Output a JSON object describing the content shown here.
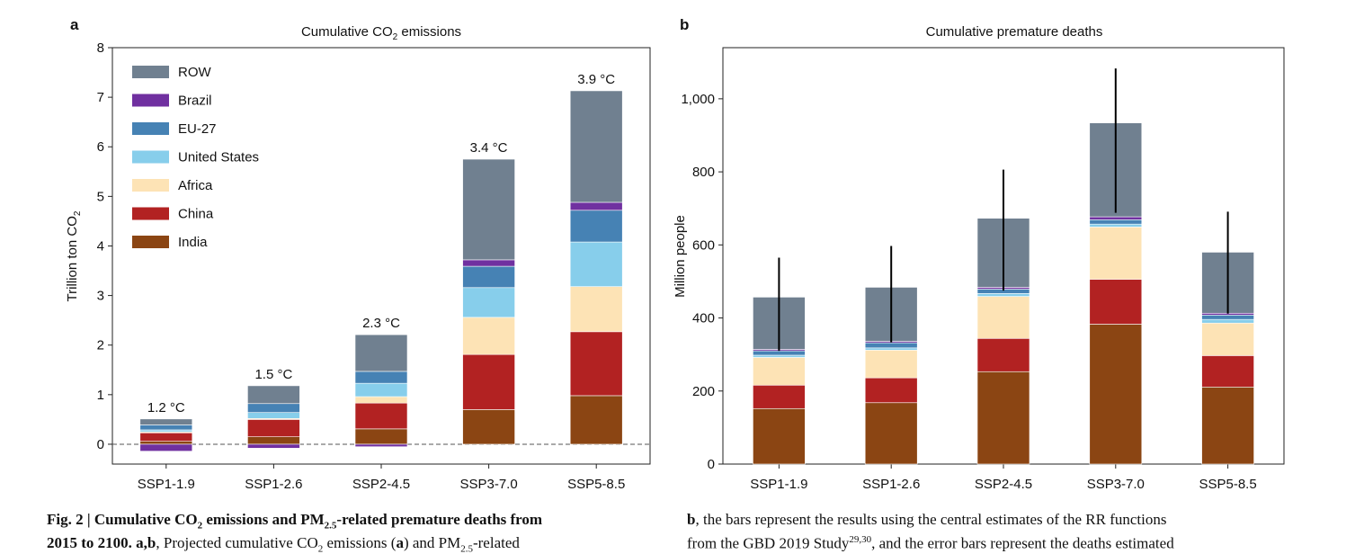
{
  "chart_data": [
    {
      "type": "stacked_bar",
      "panel": "a",
      "title_parts": [
        "Cumulative CO",
        "2",
        " emissions"
      ],
      "ylabel_parts": [
        "Trillion ton CO",
        "2"
      ],
      "categories": [
        "SSP1-1.9",
        "SSP1-2.6",
        "SSP2-4.5",
        "SSP3-7.0",
        "SSP5-8.5"
      ],
      "annotations": [
        "1.2 °C",
        "1.5 °C",
        "2.3 °C",
        "3.4 °C",
        "3.9 °C"
      ],
      "series": [
        {
          "name": "India",
          "color": "#8b4513",
          "values": [
            0.06,
            0.15,
            0.31,
            0.7,
            0.98
          ]
        },
        {
          "name": "China",
          "color": "#b22222",
          "values": [
            0.17,
            0.35,
            0.52,
            1.11,
            1.29
          ]
        },
        {
          "name": "Africa",
          "color": "#fde3b5",
          "values": [
            0.02,
            0.02,
            0.13,
            0.75,
            0.91
          ]
        },
        {
          "name": "United States",
          "color": "#87ceeb",
          "values": [
            0.04,
            0.12,
            0.27,
            0.6,
            0.9
          ]
        },
        {
          "name": "EU-27",
          "color": "#4682b4",
          "values": [
            0.1,
            0.18,
            0.24,
            0.43,
            0.64
          ]
        },
        {
          "name": "Brazil",
          "color": "#7030a0",
          "values": [
            -0.14,
            -0.08,
            -0.05,
            0.13,
            0.16
          ]
        },
        {
          "name": "ROW",
          "color": "#708090",
          "values": [
            0.12,
            0.36,
            0.74,
            2.03,
            2.25
          ]
        }
      ],
      "ylim": [
        -0.4,
        8
      ],
      "yticks": [
        0,
        1,
        2,
        3,
        4,
        5,
        6,
        7,
        8
      ],
      "zero_line": "dashed",
      "legend": "upper left"
    },
    {
      "type": "stacked_bar",
      "panel": "b",
      "title_parts": [
        "Cumulative premature deaths"
      ],
      "ylabel_parts": [
        "Million people"
      ],
      "categories": [
        "SSP1-1.9",
        "SSP1-2.6",
        "SSP2-4.5",
        "SSP3-7.0",
        "SSP5-8.5"
      ],
      "series": [
        {
          "name": "India",
          "color": "#8b4513",
          "values": [
            152,
            168,
            253,
            383,
            211
          ]
        },
        {
          "name": "China",
          "color": "#b22222",
          "values": [
            64,
            68,
            91,
            123,
            86
          ]
        },
        {
          "name": "Africa",
          "color": "#fde3b5",
          "values": [
            76,
            76,
            115,
            143,
            89
          ]
        },
        {
          "name": "United States",
          "color": "#87ceeb",
          "values": [
            6,
            6,
            8,
            8,
            10
          ]
        },
        {
          "name": "EU-27",
          "color": "#4682b4",
          "values": [
            12,
            14,
            12,
            12,
            12
          ]
        },
        {
          "name": "Brazil",
          "color": "#7030a0",
          "values": [
            4,
            4,
            5,
            8,
            5
          ]
        },
        {
          "name": "ROW",
          "color": "#708090",
          "values": [
            143,
            148,
            189,
            257,
            167
          ]
        }
      ],
      "error_low": [
        310,
        333,
        475,
        688,
        412
      ],
      "error_high": [
        565,
        597,
        806,
        1083,
        691
      ],
      "ylim": [
        0,
        1140
      ],
      "yticks": [
        0,
        200,
        400,
        600,
        800,
        {
          "value": 1000,
          "label": "1,000"
        }
      ]
    }
  ],
  "caption": {
    "line1": [
      "Fig. 2 | Cumulative CO",
      "2",
      " emissions and PM",
      "2.5",
      "-related premature deaths from"
    ],
    "line2": [
      "2015 to 2100. a,b",
      ", Projected cumulative CO",
      "2",
      " emissions (",
      "a",
      ") and PM",
      "2.5",
      "-related"
    ],
    "line3": [
      "b",
      ", the bars represent the results using the central estimates of the RR functions"
    ],
    "line4": [
      "from the GBD 2019 Study",
      "29,30",
      ", and the error bars represent the deaths estimated"
    ]
  }
}
